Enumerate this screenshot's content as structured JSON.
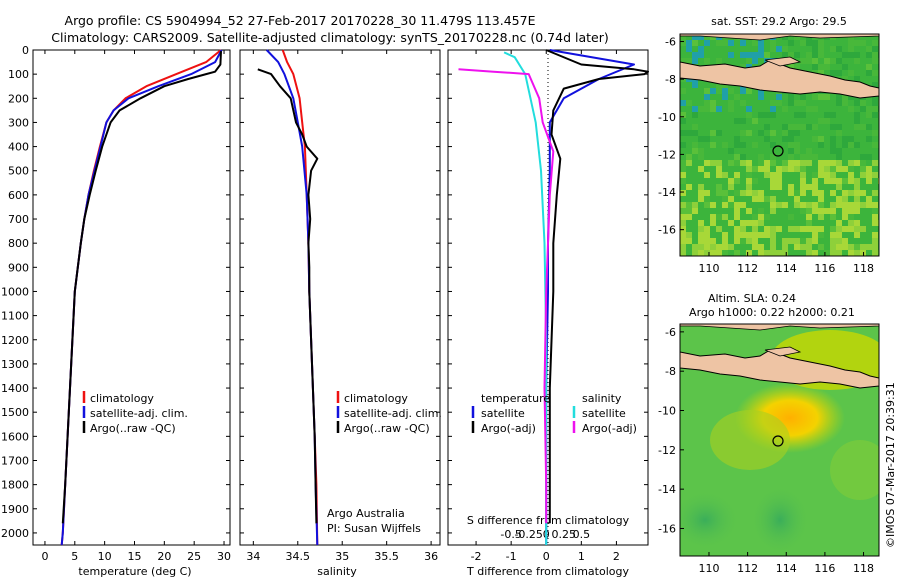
{
  "title_line1": "Argo profile: CS 5904994_52 27-Feb-2017 20170228_30 11.479S 113.457E",
  "title_line2": "Climatology: CARS2009. Satellite-adjusted climatology: synTS_20170228.nc (0.74d later)",
  "watermark": "©IMOS 07-Mar-2017 20:39:31",
  "colors": {
    "climatology": "#ee1111",
    "satellite": "#1111dd",
    "argo": "#000000",
    "salinity_satellite": "#22dddd",
    "salinity_argo": "#ee11ee",
    "land": "#eec4a4"
  },
  "depth_ticks": [
    "0",
    "100",
    "200",
    "300",
    "400",
    "500",
    "600",
    "700",
    "800",
    "900",
    "1000",
    "1100",
    "1200",
    "1300",
    "1400",
    "1500",
    "1600",
    "1700",
    "1800",
    "1900",
    "2000"
  ],
  "panels": {
    "temperature": {
      "xlabel": "temperature (deg C)",
      "xticks": [
        "0",
        "5",
        "10",
        "15",
        "20",
        "25",
        "30"
      ],
      "legend": [
        "climatology",
        "satellite-adj. clim.",
        "Argo(..raw -QC)"
      ]
    },
    "salinity": {
      "xlabel": "salinity",
      "xticks": [
        "34",
        "34.5",
        "35",
        "35.5",
        "36"
      ],
      "legend": [
        "climatology",
        "satellite-adj. clim.",
        "Argo(..raw -QC)"
      ],
      "credit1": "Argo Australia",
      "credit2": "PI: Susan Wijffels"
    },
    "difference": {
      "xlabel": "T difference from climatology",
      "xlabel2": "S difference from climatology",
      "xticks_t": [
        "-2",
        "-1",
        "0",
        "1",
        "2"
      ],
      "xticks_s": [
        "-0.5",
        "-0.25",
        "0",
        "0.25",
        "0.5"
      ],
      "legend_temperature_title": "temperature",
      "legend_temperature": [
        "satellite",
        "Argo(-adj)"
      ],
      "legend_salinity_title": "salinity",
      "legend_salinity": [
        "satellite",
        "Argo(-adj)"
      ]
    },
    "sst_map": {
      "title": "sat. SST: 29.2 Argo: 29.5",
      "yticks": [
        "-6",
        "-8",
        "-10",
        "-12",
        "-14",
        "-16"
      ],
      "xticks": [
        "110",
        "112",
        "114",
        "116",
        "118"
      ]
    },
    "sla_map": {
      "title1": "Altim. SLA: 0.24",
      "title2": "Argo h1000: 0.22 h2000: 0.21",
      "yticks": [
        "-6",
        "-8",
        "-10",
        "-12",
        "-14",
        "-16"
      ],
      "xticks": [
        "110",
        "112",
        "114",
        "116",
        "118"
      ]
    }
  },
  "chart_data": [
    {
      "type": "line",
      "panel": "temperature",
      "xlabel": "temperature (deg C)",
      "xlim": [
        -2,
        31
      ],
      "ylim": [
        2050,
        0
      ],
      "series": [
        {
          "name": "climatology",
          "points": [
            [
              29.5,
              0
            ],
            [
              27,
              50
            ],
            [
              22,
              100
            ],
            [
              17,
              150
            ],
            [
              13.5,
              200
            ],
            [
              11.5,
              250
            ],
            [
              10.3,
              300
            ],
            [
              9.2,
              400
            ],
            [
              8.2,
              500
            ],
            [
              7.3,
              600
            ],
            [
              6.6,
              700
            ],
            [
              6,
              800
            ],
            [
              5.5,
              900
            ],
            [
              5,
              1000
            ],
            [
              4.6,
              1200
            ],
            [
              4.2,
              1400
            ],
            [
              3.8,
              1600
            ],
            [
              3.4,
              1800
            ],
            [
              3,
              2000
            ],
            [
              2.8,
              2050
            ]
          ]
        },
        {
          "name": "satellite-adj. clim.",
          "points": [
            [
              29.6,
              0
            ],
            [
              28.5,
              50
            ],
            [
              24.5,
              100
            ],
            [
              19,
              150
            ],
            [
              14,
              200
            ],
            [
              11.5,
              250
            ],
            [
              10.3,
              300
            ],
            [
              9.3,
              400
            ],
            [
              8.3,
              500
            ],
            [
              7.3,
              600
            ],
            [
              6.6,
              700
            ],
            [
              6,
              800
            ],
            [
              5.5,
              900
            ],
            [
              5,
              1000
            ],
            [
              4.6,
              1200
            ],
            [
              4.2,
              1400
            ],
            [
              3.8,
              1600
            ],
            [
              3.4,
              1800
            ],
            [
              3,
              2000
            ],
            [
              2.8,
              2050
            ]
          ]
        },
        {
          "name": "Argo(..raw -QC)",
          "points": [
            [
              29.5,
              5
            ],
            [
              29.4,
              60
            ],
            [
              28.5,
              90
            ],
            [
              27,
              100
            ],
            [
              24,
              120
            ],
            [
              20,
              150
            ],
            [
              16,
              200
            ],
            [
              12.5,
              250
            ],
            [
              11,
              300
            ],
            [
              9.6,
              400
            ],
            [
              8.5,
              500
            ],
            [
              7.5,
              600
            ],
            [
              6.6,
              700
            ],
            [
              6,
              800
            ],
            [
              5.5,
              900
            ],
            [
              5,
              1000
            ],
            [
              4.6,
              1200
            ],
            [
              4.2,
              1400
            ],
            [
              3.8,
              1600
            ],
            [
              3.4,
              1800
            ],
            [
              3,
              1960
            ]
          ]
        }
      ]
    },
    {
      "type": "line",
      "panel": "salinity",
      "xlabel": "salinity",
      "xlim": [
        33.85,
        36.1
      ],
      "ylim": [
        2050,
        0
      ],
      "series": [
        {
          "name": "climatology",
          "points": [
            [
              34.33,
              0
            ],
            [
              34.38,
              50
            ],
            [
              34.45,
              100
            ],
            [
              34.52,
              200
            ],
            [
              34.55,
              300
            ],
            [
              34.58,
              400
            ],
            [
              34.6,
              600
            ],
            [
              34.62,
              800
            ],
            [
              34.63,
              1000
            ],
            [
              34.65,
              1200
            ],
            [
              34.67,
              1400
            ],
            [
              34.69,
              1600
            ],
            [
              34.71,
              1800
            ],
            [
              34.72,
              2050
            ]
          ]
        },
        {
          "name": "satellite-adj. clim.",
          "points": [
            [
              34.15,
              0
            ],
            [
              34.28,
              50
            ],
            [
              34.35,
              100
            ],
            [
              34.45,
              200
            ],
            [
              34.5,
              300
            ],
            [
              34.55,
              400
            ],
            [
              34.6,
              600
            ],
            [
              34.62,
              800
            ],
            [
              34.63,
              1000
            ],
            [
              34.65,
              1200
            ],
            [
              34.67,
              1400
            ],
            [
              34.69,
              1600
            ],
            [
              34.7,
              1800
            ],
            [
              34.72,
              2050
            ]
          ]
        },
        {
          "name": "Argo(..raw -QC)",
          "points": [
            [
              34.05,
              80
            ],
            [
              34.2,
              100
            ],
            [
              34.3,
              150
            ],
            [
              34.42,
              200
            ],
            [
              34.48,
              300
            ],
            [
              34.55,
              350
            ],
            [
              34.6,
              400
            ],
            [
              34.72,
              450
            ],
            [
              34.65,
              500
            ],
            [
              34.62,
              600
            ],
            [
              34.64,
              700
            ],
            [
              34.62,
              800
            ],
            [
              34.63,
              900
            ],
            [
              34.63,
              1000
            ],
            [
              34.65,
              1200
            ],
            [
              34.67,
              1400
            ],
            [
              34.69,
              1600
            ],
            [
              34.7,
              1800
            ],
            [
              34.71,
              1960
            ]
          ]
        }
      ]
    },
    {
      "type": "line",
      "panel": "difference",
      "xlabel": "T difference from climatology",
      "xlim": [
        -2.8,
        2.9
      ],
      "ylim": [
        2050,
        0
      ],
      "series": [
        {
          "name": "temperature satellite",
          "points": [
            [
              0.1,
              0
            ],
            [
              2.5,
              60
            ],
            [
              1.5,
              120
            ],
            [
              0.5,
              200
            ],
            [
              0.1,
              300
            ],
            [
              0.1,
              500
            ],
            [
              0.05,
              800
            ],
            [
              0.05,
              1000
            ],
            [
              0,
              1400
            ],
            [
              0,
              1800
            ],
            [
              0,
              2050
            ]
          ]
        },
        {
          "name": "temperature Argo(-adj)",
          "points": [
            [
              0,
              0
            ],
            [
              1,
              60
            ],
            [
              2.5,
              80
            ],
            [
              3,
              90
            ],
            [
              2.8,
              100
            ],
            [
              1.5,
              120
            ],
            [
              0.5,
              160
            ],
            [
              0.2,
              250
            ],
            [
              0.15,
              350
            ],
            [
              0.4,
              450
            ],
            [
              0.3,
              600
            ],
            [
              0.2,
              800
            ],
            [
              0.2,
              1000
            ],
            [
              0.1,
              1400
            ],
            [
              0.1,
              1800
            ],
            [
              0.1,
              1960
            ]
          ]
        },
        {
          "name": "salinity satellite",
          "points": [
            [
              -1.2,
              10
            ],
            [
              -0.9,
              30
            ],
            [
              -0.6,
              100
            ],
            [
              -0.3,
              300
            ],
            [
              -0.15,
              500
            ],
            [
              -0.05,
              800
            ],
            [
              0,
              1200
            ],
            [
              0,
              1600
            ],
            [
              0,
              2050
            ]
          ]
        },
        {
          "name": "salinity Argo(-adj)",
          "points": [
            [
              -2.5,
              80
            ],
            [
              -1.5,
              90
            ],
            [
              -0.5,
              100
            ],
            [
              -0.2,
              200
            ],
            [
              -0.1,
              300
            ],
            [
              0.2,
              420
            ],
            [
              0.1,
              600
            ],
            [
              0.05,
              800
            ],
            [
              0,
              1000
            ],
            [
              -0.05,
              1400
            ],
            [
              0,
              1800
            ],
            [
              0,
              1960
            ]
          ]
        }
      ]
    },
    {
      "type": "heatmap",
      "panel": "sst_map",
      "title": "sat. SST: 29.2 Argo: 29.5",
      "xlim": [
        108.5,
        118.8
      ],
      "ylim": [
        -17.4,
        -5.6
      ],
      "marker": {
        "lon": 113.457,
        "lat": -11.479
      }
    },
    {
      "type": "heatmap",
      "panel": "sla_map",
      "title": "Altim. SLA: 0.24",
      "xlim": [
        108.5,
        118.8
      ],
      "ylim": [
        -17.4,
        -5.6
      ],
      "marker": {
        "lon": 113.457,
        "lat": -11.479
      }
    }
  ]
}
